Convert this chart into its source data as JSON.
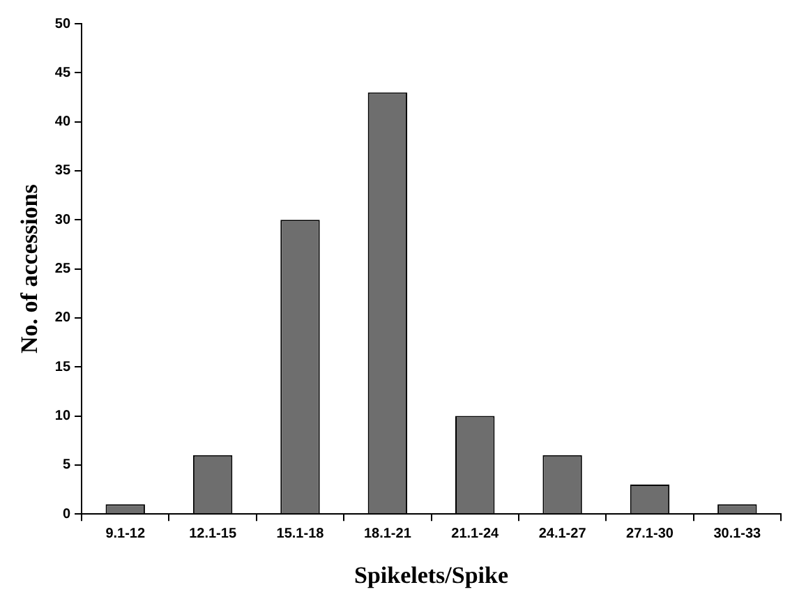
{
  "chart_data": {
    "type": "bar",
    "xlabel": "Spikelets/Spike",
    "ylabel": "No. of accessions",
    "categories": [
      "9.1-12",
      "12.1-15",
      "15.1-18",
      "18.1-21",
      "21.1-24",
      "24.1-27",
      "27.1-30",
      "30.1-33"
    ],
    "values": [
      1,
      6,
      30,
      43,
      10,
      6,
      3,
      1
    ],
    "color": "#6e6e6e",
    "ylim": [
      0,
      50
    ],
    "yticks": [
      0,
      5,
      10,
      15,
      20,
      25,
      30,
      35,
      40,
      45,
      50
    ],
    "grid": false,
    "legend": false
  }
}
